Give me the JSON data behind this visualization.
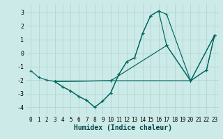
{
  "xlabel": "Humidex (Indice chaleur)",
  "xlim": [
    -0.5,
    23.5
  ],
  "ylim": [
    -4.5,
    3.6
  ],
  "yticks": [
    -4,
    -3,
    -2,
    -1,
    0,
    1,
    2,
    3
  ],
  "xticks": [
    0,
    1,
    2,
    3,
    4,
    5,
    6,
    7,
    8,
    9,
    10,
    11,
    12,
    13,
    14,
    15,
    16,
    17,
    18,
    19,
    20,
    21,
    22,
    23
  ],
  "bg_color": "#cceae7",
  "line_color": "#006660",
  "grid_color": "#aad4d0",
  "lines": [
    {
      "x": [
        0,
        1,
        2,
        3,
        4,
        5,
        6,
        7,
        8,
        9,
        10,
        11,
        12,
        13,
        14,
        15,
        16,
        17,
        20,
        22,
        23
      ],
      "y": [
        -1.3,
        -1.8,
        -2.0,
        -2.1,
        -2.5,
        -2.8,
        -3.2,
        -3.5,
        -4.0,
        -3.55,
        -2.95,
        -1.6,
        -0.65,
        -0.35,
        1.45,
        2.75,
        3.1,
        0.55,
        -2.05,
        -1.25,
        1.3
      ]
    },
    {
      "x": [
        3,
        4,
        5,
        6,
        7,
        8,
        9,
        10,
        11,
        12,
        13,
        14,
        15,
        16,
        17,
        20,
        22,
        23
      ],
      "y": [
        -2.1,
        -2.5,
        -2.8,
        -3.2,
        -3.5,
        -4.0,
        -3.55,
        -2.95,
        -1.6,
        -0.65,
        -0.35,
        1.45,
        2.75,
        3.1,
        2.85,
        -2.05,
        -1.25,
        1.3
      ]
    },
    {
      "x": [
        3,
        10,
        20,
        23
      ],
      "y": [
        -2.1,
        -2.05,
        -2.05,
        1.3
      ]
    },
    {
      "x": [
        3,
        10,
        17,
        20,
        23
      ],
      "y": [
        -2.1,
        -2.05,
        0.55,
        -2.05,
        1.3
      ]
    }
  ]
}
